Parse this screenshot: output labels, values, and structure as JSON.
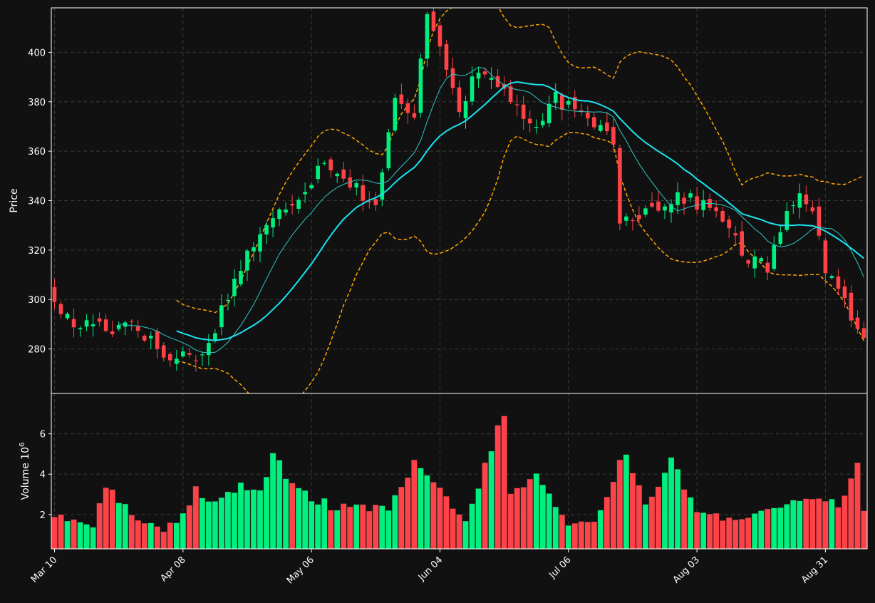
{
  "chart_data": {
    "type": "candlestick",
    "colors": {
      "background": "#111111",
      "up": "#00f07f",
      "down": "#ff4248",
      "ma_fast": "#2ec7c4",
      "ma_slow": "#19e4f0",
      "bands": "#ffa500",
      "grid": "#3a3a3a",
      "text": "#ffffff"
    },
    "price_panel": {
      "ylabel": "Price",
      "yticks": [
        280,
        300,
        320,
        340,
        360,
        380,
        400
      ],
      "ylim": [
        262,
        418
      ],
      "grid": true
    },
    "volume_panel": {
      "ylabel": "Volume",
      "yunit": "10",
      "yunit_exp": "6",
      "yticks": [
        2,
        4,
        6
      ],
      "ylim": [
        0.3,
        8.0
      ],
      "grid": true
    },
    "xticks": [
      {
        "label": "Mar 10",
        "index": 0
      },
      {
        "label": "Apr 08",
        "index": 20
      },
      {
        "label": "May 06",
        "index": 40
      },
      {
        "label": "Jun 04",
        "index": 60
      },
      {
        "label": "Jul 06",
        "index": 80
      },
      {
        "label": "Aug 03",
        "index": 100
      },
      {
        "label": "Aug 31",
        "index": 120
      }
    ],
    "n_candles": 127,
    "indicators": {
      "ma_fast_start_index": 10,
      "ma_slow_start_index": 19,
      "bands_start_index": 19
    },
    "ohlc_anchors": [
      [
        0,
        299
      ],
      [
        3,
        289
      ],
      [
        6,
        291
      ],
      [
        9,
        288
      ],
      [
        12,
        292
      ],
      [
        15,
        283
      ],
      [
        18,
        275
      ],
      [
        21,
        279
      ],
      [
        23,
        276
      ],
      [
        26,
        296
      ],
      [
        30,
        319
      ],
      [
        35,
        335
      ],
      [
        39,
        345
      ],
      [
        42,
        357
      ],
      [
        47,
        345
      ],
      [
        50,
        338
      ],
      [
        53,
        380
      ],
      [
        56,
        373
      ],
      [
        58,
        418
      ],
      [
        61,
        395
      ],
      [
        63,
        378
      ],
      [
        66,
        392
      ],
      [
        70,
        385
      ],
      [
        75,
        367
      ],
      [
        78,
        382
      ],
      [
        81,
        375
      ],
      [
        84,
        372
      ],
      [
        87,
        365
      ],
      [
        88,
        333
      ],
      [
        91,
        335
      ],
      [
        94,
        338
      ],
      [
        97,
        342
      ],
      [
        101,
        338
      ],
      [
        104,
        334
      ],
      [
        107,
        318
      ],
      [
        111,
        313
      ],
      [
        113,
        327
      ],
      [
        116,
        345
      ],
      [
        118,
        336
      ],
      [
        120,
        313
      ],
      [
        123,
        298
      ],
      [
        126,
        283
      ]
    ],
    "volume_anchors": [
      [
        0,
        2.1
      ],
      [
        3,
        1.8
      ],
      [
        6,
        1.5
      ],
      [
        8,
        3.4
      ],
      [
        12,
        2.1
      ],
      [
        17,
        1.2
      ],
      [
        20,
        1.9
      ],
      [
        22,
        3.4
      ],
      [
        24,
        2.5
      ],
      [
        29,
        3.4
      ],
      [
        32,
        3.3
      ],
      [
        34,
        4.9
      ],
      [
        38,
        3.1
      ],
      [
        44,
        2.3
      ],
      [
        52,
        2.3
      ],
      [
        56,
        4.5
      ],
      [
        59,
        3.5
      ],
      [
        64,
        1.6
      ],
      [
        70,
        7.1
      ],
      [
        71,
        3.0
      ],
      [
        75,
        3.9
      ],
      [
        80,
        1.5
      ],
      [
        84,
        1.6
      ],
      [
        89,
        5.2
      ],
      [
        92,
        2.3
      ],
      [
        96,
        4.9
      ],
      [
        100,
        1.9
      ],
      [
        110,
        2.0
      ],
      [
        117,
        2.7
      ],
      [
        122,
        2.5
      ],
      [
        125,
        4.4
      ],
      [
        126,
        2.3
      ]
    ],
    "seed": 17
  }
}
